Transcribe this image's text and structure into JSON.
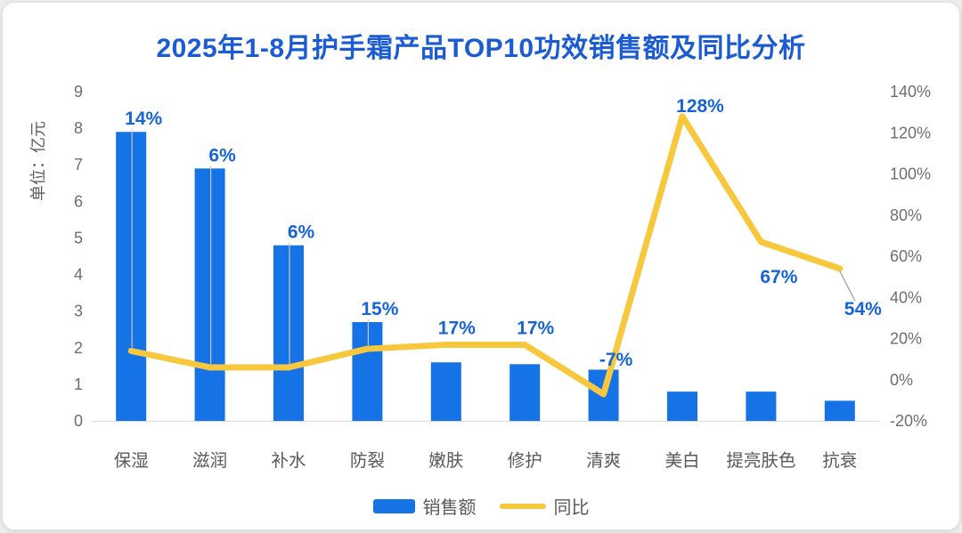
{
  "chart_data": {
    "type": "combo-bar-line",
    "title": "2025年1-8月护手霜产品TOP10功效销售额及同比分析",
    "unit_label": "单位：亿元",
    "categories": [
      "保湿",
      "滋润",
      "补水",
      "防裂",
      "嫩肤",
      "修护",
      "清爽",
      "美白",
      "提亮肤色",
      "抗衰"
    ],
    "series": [
      {
        "name": "销售额",
        "type": "bar",
        "axis": "left",
        "unit": "亿元",
        "values": [
          7.9,
          6.9,
          4.8,
          2.7,
          1.6,
          1.55,
          1.4,
          0.8,
          0.8,
          0.55
        ]
      },
      {
        "name": "同比",
        "type": "line",
        "axis": "right",
        "values_pct": [
          14,
          6,
          6,
          15,
          17,
          17,
          -7,
          128,
          67,
          54
        ],
        "labels": [
          "14%",
          "6%",
          "6%",
          "15%",
          "17%",
          "17%",
          "-7%",
          "128%",
          "67%",
          "54%"
        ]
      }
    ],
    "left_axis": {
      "min": 0,
      "max": 9,
      "tick_step": 1,
      "tick_labels": [
        "0",
        "1",
        "2",
        "3",
        "4",
        "5",
        "6",
        "7",
        "8",
        "9"
      ]
    },
    "right_axis": {
      "min": -20,
      "max": 140,
      "tick_step": 20,
      "tick_labels": [
        "-20%",
        "0%",
        "20%",
        "40%",
        "60%",
        "80%",
        "100%",
        "120%",
        "140%"
      ]
    },
    "legend": [
      {
        "label": "销售额",
        "swatch": "bar"
      },
      {
        "label": "同比",
        "swatch": "line"
      }
    ],
    "layout_hints": {
      "grid": false,
      "legend_position": "bottom",
      "plot_background": "white"
    },
    "colors": {
      "bar": "#1673e6",
      "line": "#f7c83d",
      "data_label": "#1664d6",
      "title": "#1b5bd3",
      "axis_text": "#6e6e6e",
      "category_text": "#595959",
      "axis_line": "#d9d9d9",
      "leader_line": "#c9c9c9",
      "leader_line_dark": "#999999"
    }
  }
}
